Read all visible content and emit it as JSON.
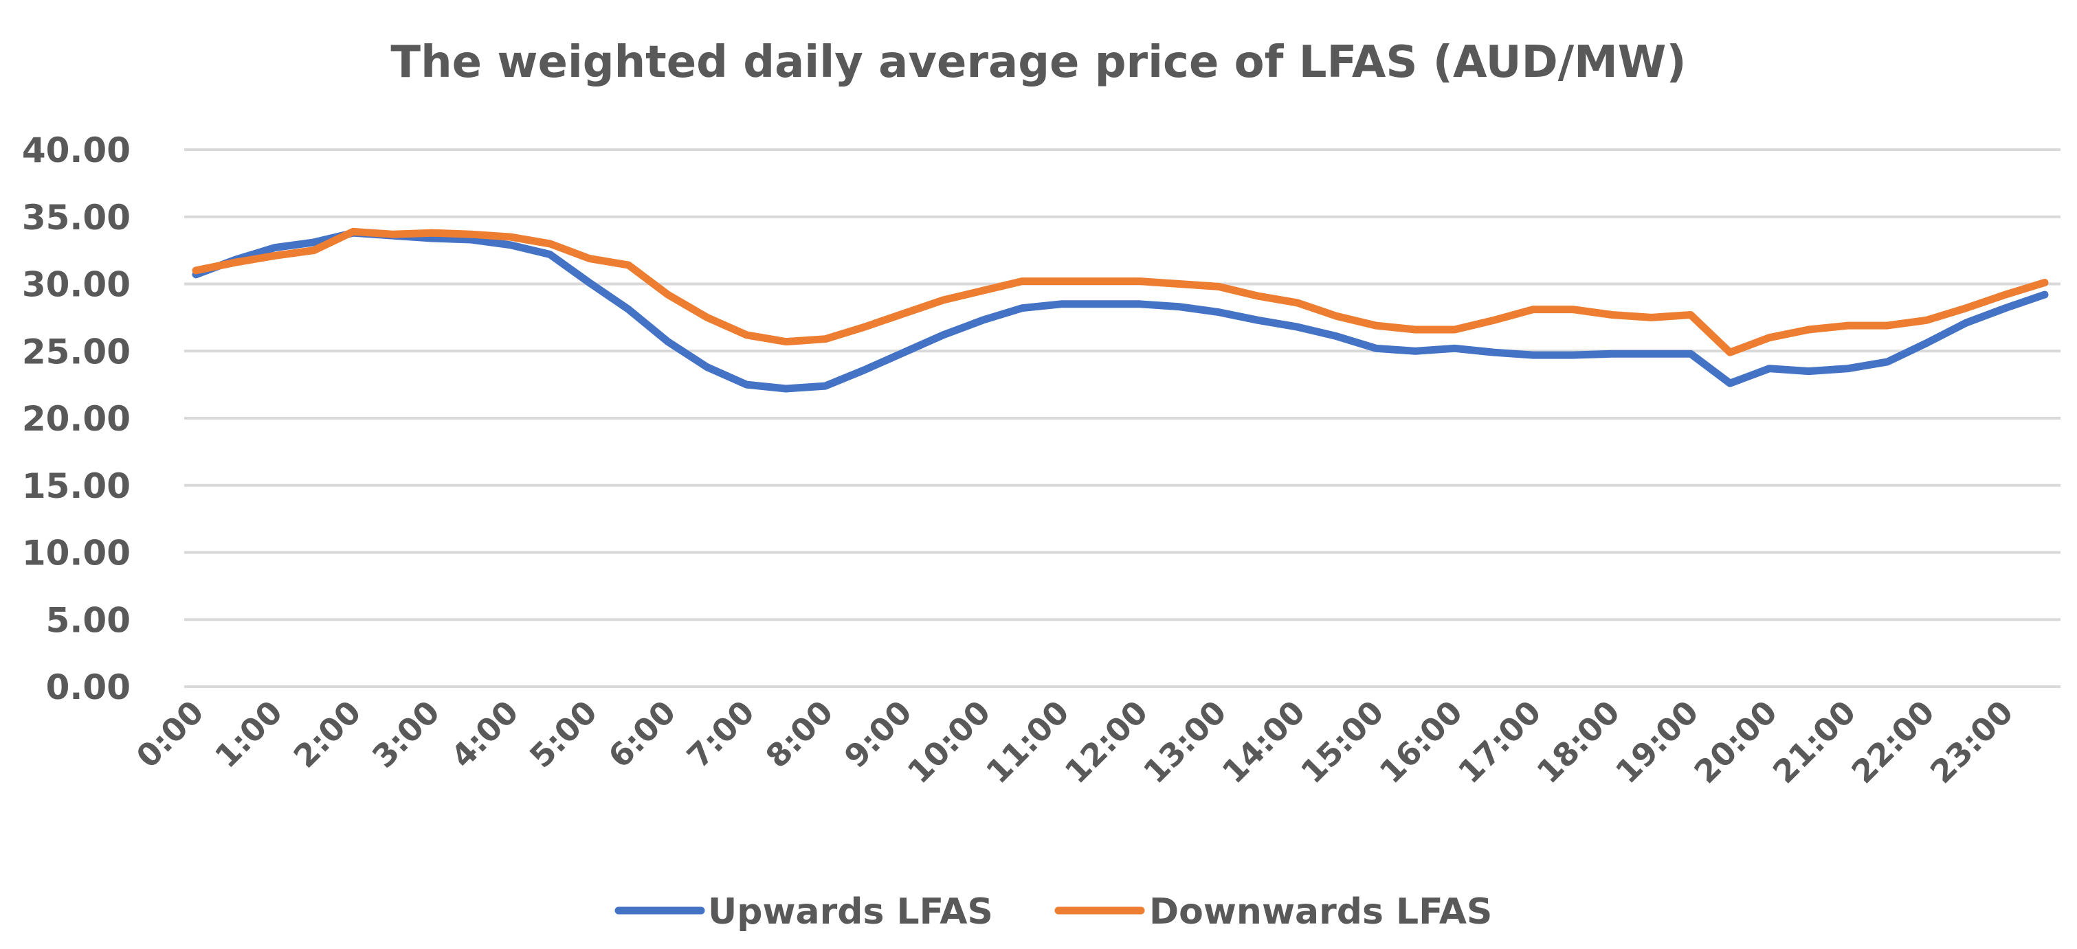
{
  "chart_data": {
    "type": "line",
    "title": "The weighted daily average price of LFAS (AUD/MW)",
    "xlabel": "",
    "ylabel": "",
    "ylim": [
      0,
      40
    ],
    "yticks": [
      "0.00",
      "5.00",
      "10.00",
      "15.00",
      "20.00",
      "25.00",
      "30.00",
      "35.00",
      "40.00"
    ],
    "x": [
      "0:00",
      "0:30",
      "1:00",
      "1:30",
      "2:00",
      "2:30",
      "3:00",
      "3:30",
      "4:00",
      "4:30",
      "5:00",
      "5:30",
      "6:00",
      "6:30",
      "7:00",
      "7:30",
      "8:00",
      "8:30",
      "9:00",
      "9:30",
      "10:00",
      "10:30",
      "11:00",
      "11:30",
      "12:00",
      "12:30",
      "13:00",
      "13:30",
      "14:00",
      "14:30",
      "15:00",
      "15:30",
      "16:00",
      "16:30",
      "17:00",
      "17:30",
      "18:00",
      "18:30",
      "19:00",
      "19:30",
      "20:00",
      "20:30",
      "21:00",
      "21:30",
      "22:00",
      "22:30",
      "23:00",
      "23:30"
    ],
    "xtick_labels": [
      "0:00",
      "1:00",
      "2:00",
      "3:00",
      "4:00",
      "5:00",
      "6:00",
      "7:00",
      "8:00",
      "9:00",
      "10:00",
      "11:00",
      "12:00",
      "13:00",
      "14:00",
      "15:00",
      "16:00",
      "17:00",
      "18:00",
      "19:00",
      "20:00",
      "21:00",
      "22:00",
      "23:00"
    ],
    "grid": true,
    "legend_position": "bottom",
    "series": [
      {
        "name": "Upwards LFAS",
        "color": "#4472C4",
        "values": [
          30.7,
          31.8,
          32.7,
          33.1,
          33.8,
          33.6,
          33.4,
          33.3,
          32.9,
          32.2,
          30.1,
          28.1,
          25.7,
          23.8,
          22.5,
          22.2,
          22.4,
          23.6,
          24.9,
          26.2,
          27.3,
          28.2,
          28.5,
          28.5,
          28.5,
          28.3,
          27.9,
          27.3,
          26.8,
          26.1,
          25.2,
          25.0,
          25.2,
          24.9,
          24.7,
          24.7,
          24.8,
          24.8,
          24.8,
          22.6,
          23.7,
          23.5,
          23.7,
          24.2,
          25.6,
          27.1,
          28.2,
          29.2
        ]
      },
      {
        "name": "Downwards LFAS",
        "color": "#ED7D31",
        "values": [
          31.0,
          31.6,
          32.1,
          32.5,
          33.9,
          33.7,
          33.8,
          33.7,
          33.5,
          33.0,
          31.9,
          31.4,
          29.2,
          27.5,
          26.2,
          25.7,
          25.9,
          26.8,
          27.8,
          28.8,
          29.5,
          30.2,
          30.2,
          30.2,
          30.2,
          30.0,
          29.8,
          29.1,
          28.6,
          27.6,
          26.9,
          26.6,
          26.6,
          27.3,
          28.1,
          28.1,
          27.7,
          27.5,
          27.7,
          24.9,
          26.0,
          26.6,
          26.9,
          26.9,
          27.3,
          28.2,
          29.2,
          30.1
        ]
      }
    ]
  }
}
